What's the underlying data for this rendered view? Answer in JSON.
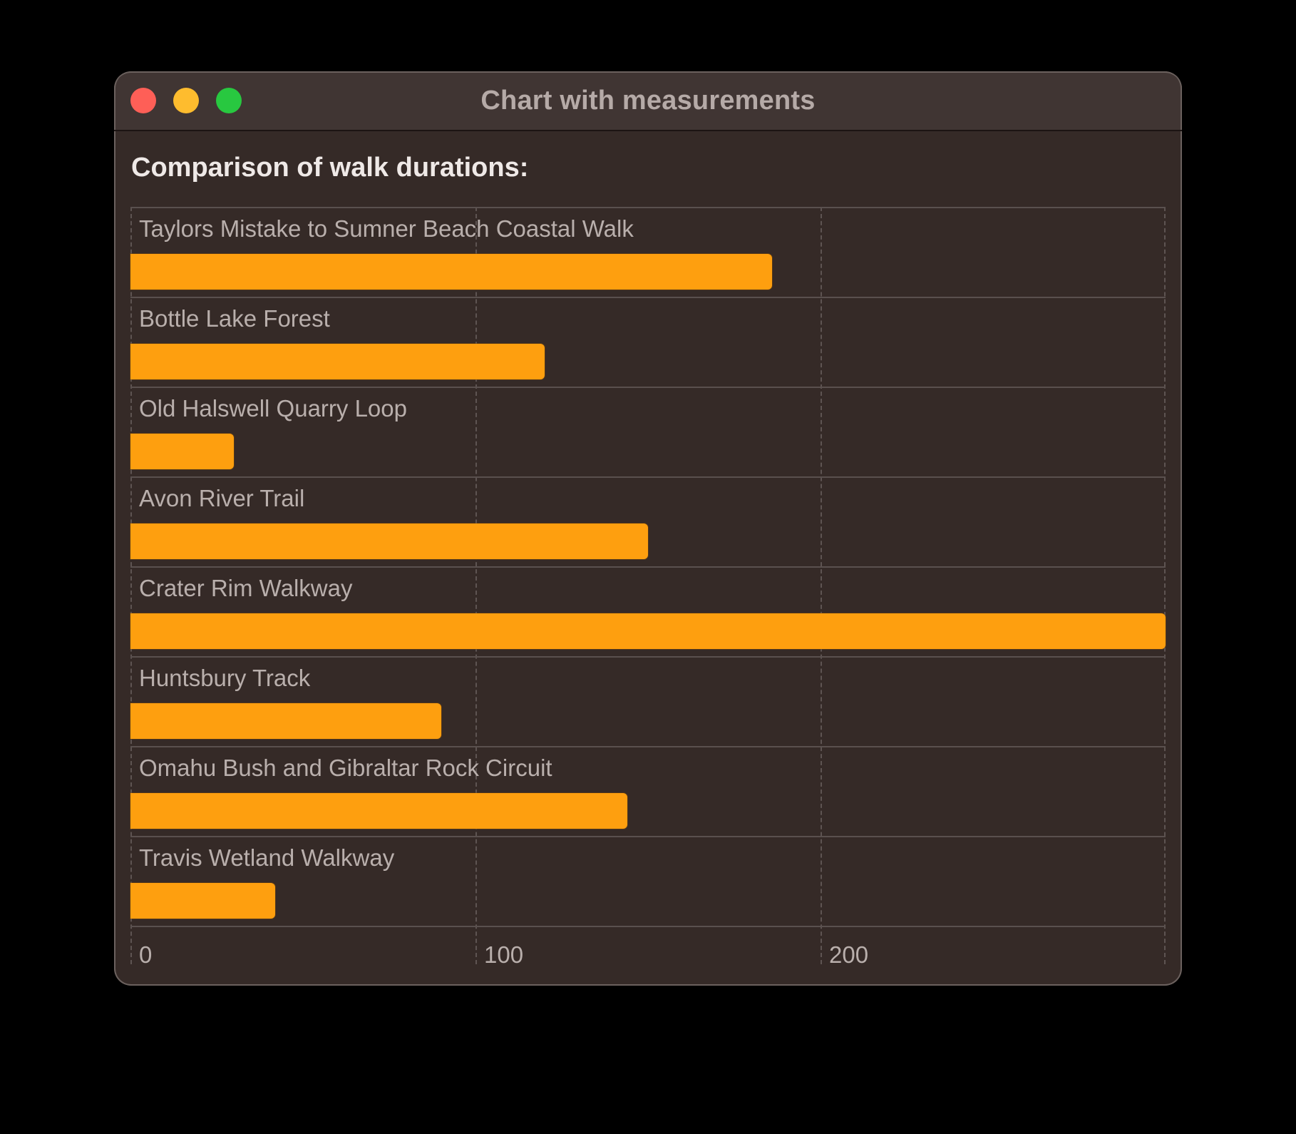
{
  "window": {
    "title": "Chart with measurements",
    "controls": {
      "close": "close-button",
      "minimize": "minimize-button",
      "maximize": "zoom-button"
    }
  },
  "chart": {
    "heading": "Comparison of walk durations:",
    "bar_color": "#fe9f0f",
    "rows": [
      {
        "label": "Taylors Mistake to Sumner Beach Coastal Walk",
        "value": 186
      },
      {
        "label": "Bottle Lake Forest",
        "value": 120
      },
      {
        "label": "Old Halswell Quarry Loop",
        "value": 30
      },
      {
        "label": "Avon River Trail",
        "value": 150
      },
      {
        "label": "Crater Rim Walkway",
        "value": 300
      },
      {
        "label": "Huntsbury Track",
        "value": 90
      },
      {
        "label": "Omahu Bush and Gibraltar Rock Circuit",
        "value": 144
      },
      {
        "label": "Travis Wetland Walkway",
        "value": 42
      }
    ],
    "x_ticks": [
      "0",
      "100",
      "200"
    ]
  },
  "chart_data": {
    "type": "bar",
    "orientation": "horizontal",
    "title": "Comparison of walk durations:",
    "categories": [
      "Taylors Mistake to Sumner Beach Coastal Walk",
      "Bottle Lake Forest",
      "Old Halswell Quarry Loop",
      "Avon River Trail",
      "Crater Rim Walkway",
      "Huntsbury Track",
      "Omahu Bush and Gibraltar Rock Circuit",
      "Travis Wetland Walkway"
    ],
    "values": [
      186,
      120,
      30,
      150,
      300,
      90,
      144,
      42
    ],
    "xlabel": "",
    "ylabel": "",
    "xlim": [
      0,
      300
    ],
    "x_tick_labels": [
      "0",
      "100",
      "200"
    ],
    "grid": true,
    "legend": "none",
    "color": "#fe9f0f"
  }
}
